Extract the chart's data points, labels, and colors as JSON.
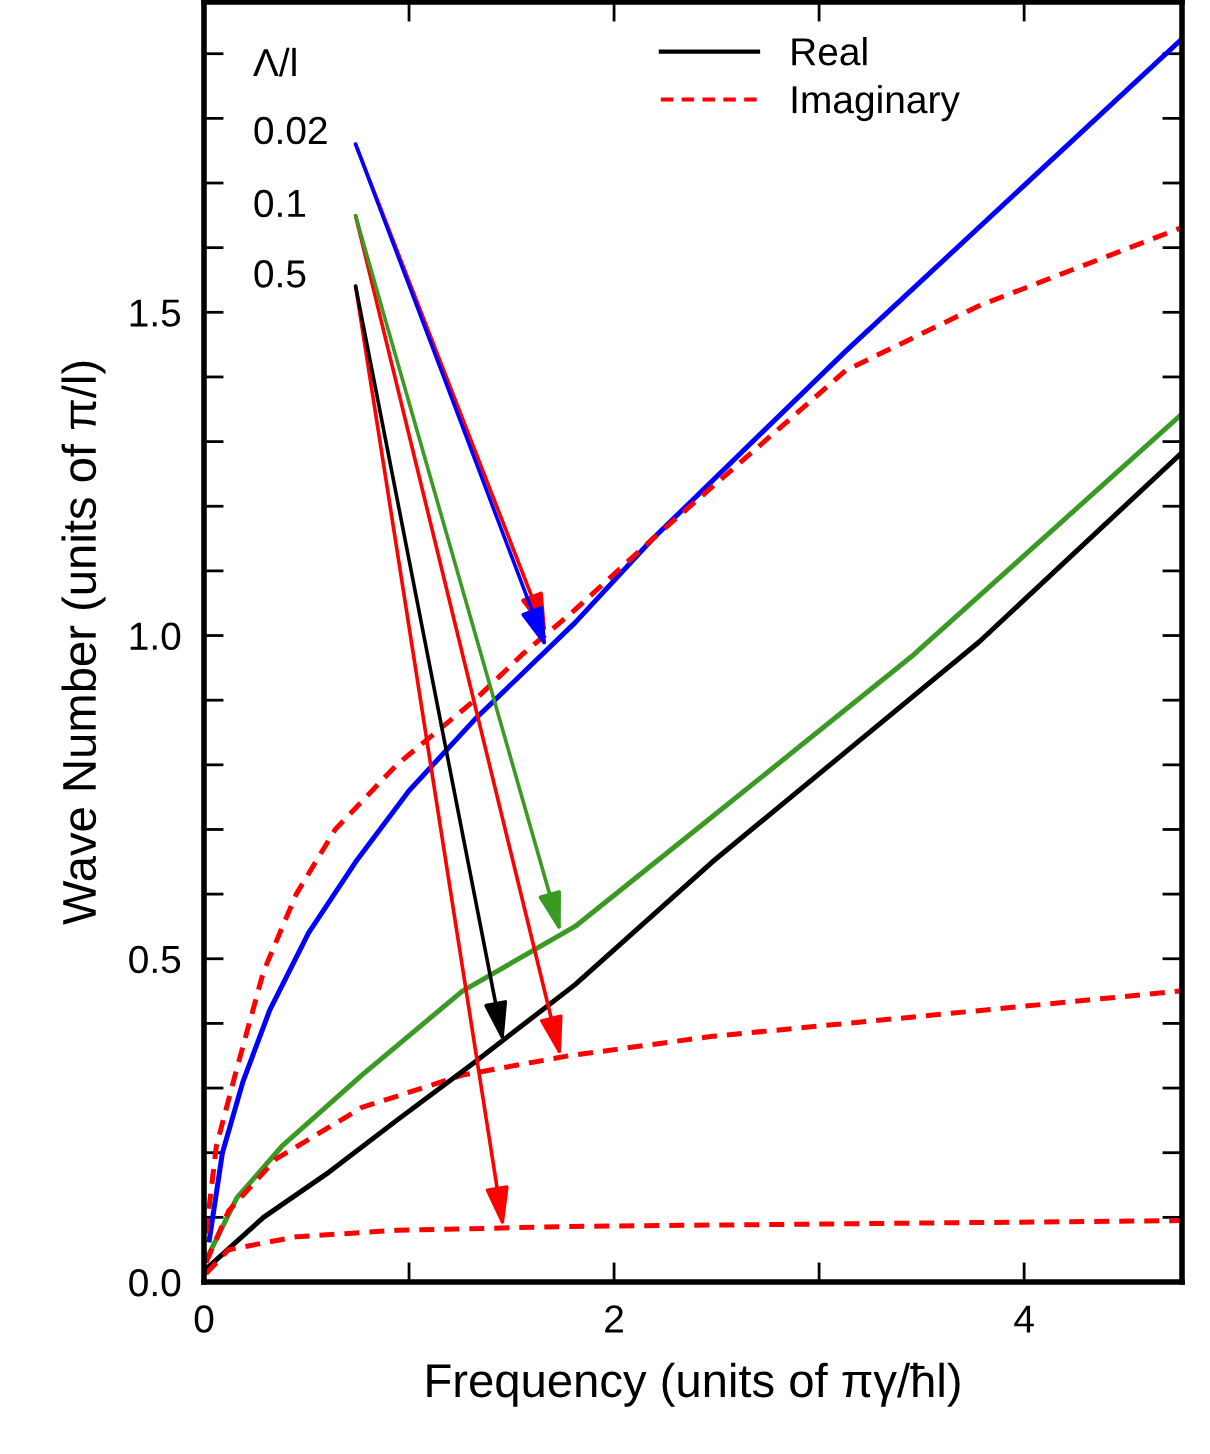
{
  "chart_data": {
    "type": "line",
    "xlabel": "Frequency (units of πγ/ħl)",
    "ylabel": "Wave Number (units of π/l)",
    "xlim": [
      0,
      4.77
    ],
    "ylim": [
      0,
      1.98
    ],
    "xticks": [
      0,
      {
        "value": 1,
        "label": null
      },
      2,
      {
        "value": 3,
        "label": null
      },
      4
    ],
    "yticks": [
      {
        "value": 0,
        "label": "0.0"
      },
      {
        "value": 0.1,
        "label": null
      },
      {
        "value": 0.2,
        "label": null
      },
      {
        "value": 0.3,
        "label": null
      },
      {
        "value": 0.4,
        "label": null
      },
      {
        "value": 0.5,
        "label": "0.5"
      },
      {
        "value": 0.6,
        "label": null
      },
      {
        "value": 0.7,
        "label": null
      },
      {
        "value": 0.8,
        "label": null
      },
      {
        "value": 0.9,
        "label": null
      },
      {
        "value": 1.0,
        "label": "1.0"
      },
      {
        "value": 1.1,
        "label": null
      },
      {
        "value": 1.2,
        "label": null
      },
      {
        "value": 1.3,
        "label": null
      },
      {
        "value": 1.4,
        "label": null
      },
      {
        "value": 1.5,
        "label": "1.5"
      },
      {
        "value": 1.6,
        "label": null
      },
      {
        "value": 1.7,
        "label": null
      },
      {
        "value": 1.8,
        "label": null
      },
      {
        "value": 1.9,
        "label": null
      }
    ],
    "grid": false,
    "legend": "top",
    "marker": "none",
    "series": [
      {
        "color": "#0000ff",
        "line_style": "solid",
        "x": [
          0.026,
          0.09,
          0.19,
          0.32,
          0.51,
          0.74,
          1.0,
          1.32,
          1.81,
          2.19,
          3.13,
          4.76
        ],
        "values": [
          0.065,
          0.2,
          0.31,
          0.42,
          0.54,
          0.65,
          0.76,
          0.87,
          1.02,
          1.15,
          1.44,
          1.92
        ]
      },
      {
        "color": "#ff0000",
        "line_style": "dashed",
        "x": [
          0.01,
          0.06,
          0.16,
          0.29,
          0.45,
          0.64,
          0.94,
          1.32,
          1.55,
          1.81,
          2.19,
          3.13,
          3.78,
          4.76
        ],
        "values": [
          0.075,
          0.21,
          0.33,
          0.48,
          0.6,
          0.7,
          0.8,
          0.9,
          0.97,
          1.04,
          1.15,
          1.41,
          1.51,
          1.63
        ]
      },
      {
        "color": "#3a9a23",
        "line_style": "solid",
        "x": [
          0.01,
          0.16,
          0.38,
          0.77,
          1.26,
          1.81,
          2.48,
          3.46,
          4.76
        ],
        "values": [
          0.034,
          0.13,
          0.21,
          0.32,
          0.45,
          0.55,
          0.72,
          0.97,
          1.34
        ]
      },
      {
        "color": "#ff0000",
        "line_style": "dashed",
        "x": [
          0.01,
          0.12,
          0.35,
          0.77,
          1.26,
          1.78,
          2.48,
          3.46,
          4.76
        ],
        "values": [
          0.03,
          0.11,
          0.19,
          0.27,
          0.32,
          0.35,
          0.38,
          0.41,
          0.45
        ]
      },
      {
        "name": "Real",
        "color": "#000000",
        "line_style": "solid",
        "x": [
          0.01,
          0.29,
          0.61,
          0.94,
          1.32,
          1.81,
          2.48,
          3.13,
          3.78,
          4.76
        ],
        "values": [
          0.02,
          0.1,
          0.17,
          0.25,
          0.34,
          0.46,
          0.65,
          0.82,
          0.99,
          1.28
        ]
      },
      {
        "name": "Imaginary",
        "color": "#ff0000",
        "line_style": "dashed",
        "x": [
          0.01,
          0.12,
          0.45,
          0.94,
          1.81,
          3.13,
          4.76
        ],
        "values": [
          0.013,
          0.05,
          0.07,
          0.08,
          0.086,
          0.09,
          0.095
        ]
      }
    ],
    "annotations": [
      "Λ/l",
      {
        "text": "0.02",
        "x": 1.67,
        "y": 0.98
      },
      {
        "text": "0.1",
        "x": 1.74,
        "y": 0.54
      },
      {
        "text": "0.5",
        "x": 1.46,
        "y": 0.37
      }
    ]
  }
}
